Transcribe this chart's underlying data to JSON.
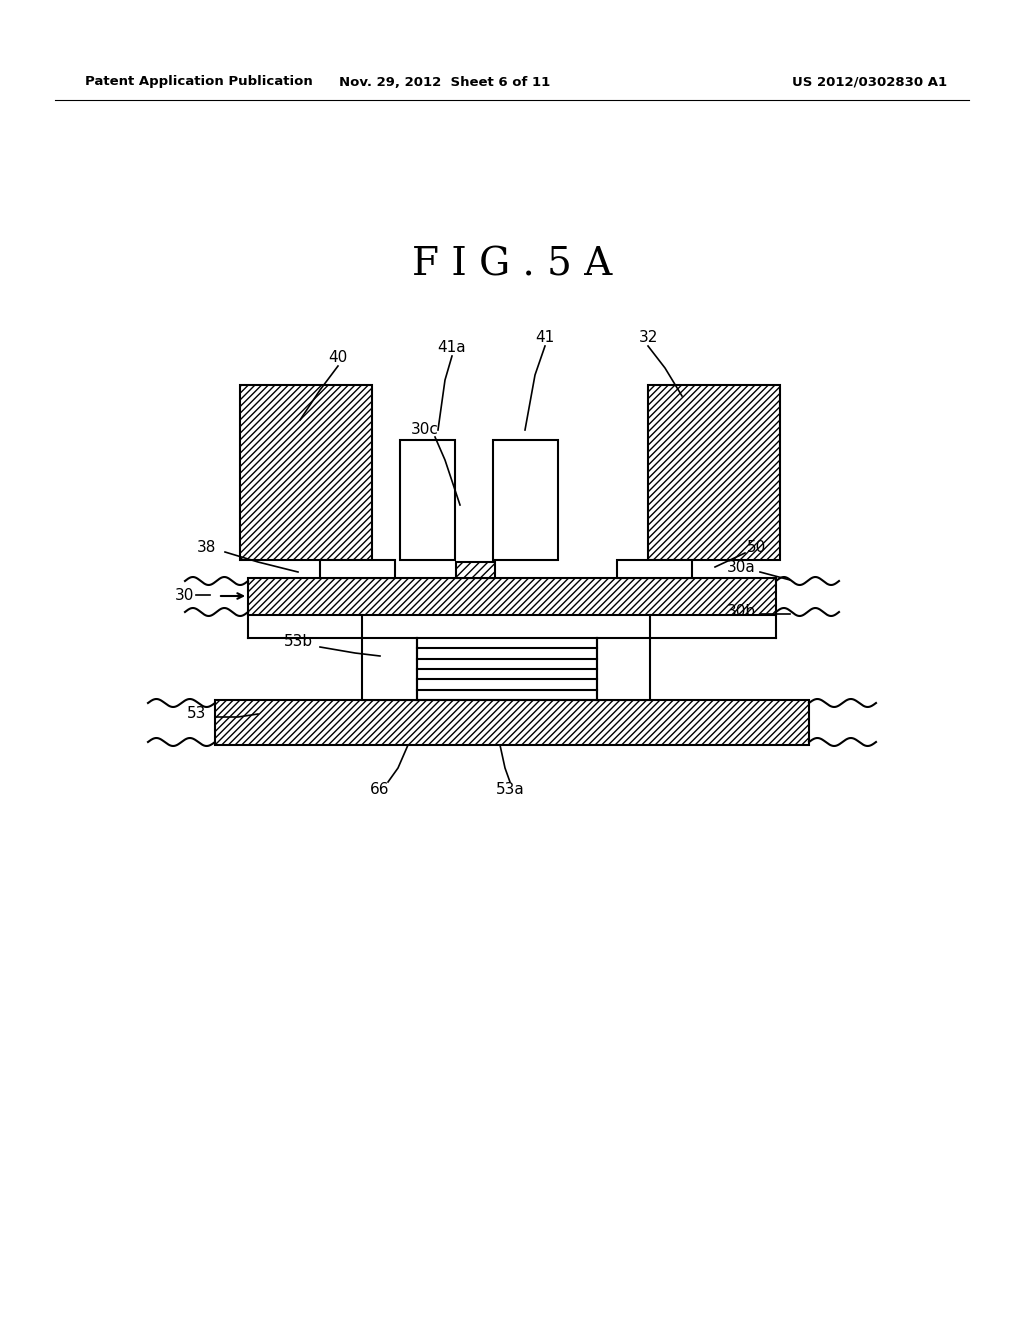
{
  "title": "F I G . 5 A",
  "header_left": "Patent Application Publication",
  "header_mid": "Nov. 29, 2012  Sheet 6 of 11",
  "header_right": "US 2012/0302830 A1",
  "bg_color": "#ffffff",
  "line_color": "#000000"
}
